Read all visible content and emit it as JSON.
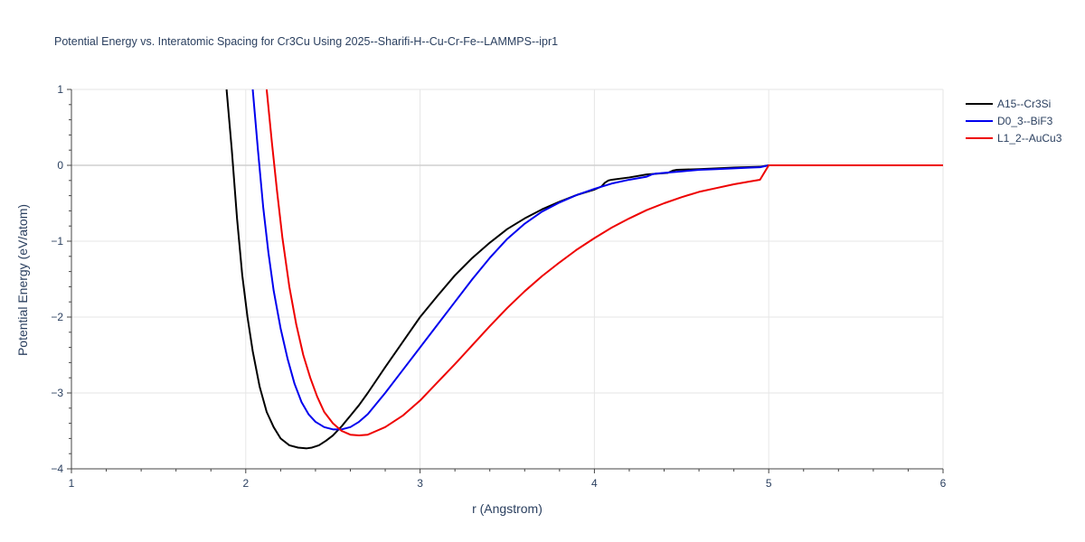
{
  "chart_data": {
    "type": "line",
    "title": "Potential Energy vs. Interatomic Spacing for Cr3Cu Using 2025--Sharifi-H--Cu-Cr-Fe--LAMMPS--ipr1",
    "xlabel": "r (Angstrom)",
    "ylabel": "Potential Energy (eV/atom)",
    "xlim": [
      1,
      6
    ],
    "ylim": [
      -4,
      1
    ],
    "xticks": [
      1,
      2,
      3,
      4,
      5,
      6
    ],
    "yticks": [
      1,
      0,
      -1,
      -2,
      -3,
      -4
    ],
    "xtick_labels": [
      "1",
      "2",
      "3",
      "4",
      "5",
      "6"
    ],
    "ytick_labels": [
      "1",
      "0",
      "−1",
      "−2",
      "−3",
      "−4"
    ],
    "legend_position": "top-right",
    "series": [
      {
        "name": "A15--Cr3Si",
        "color": "#000000",
        "x": [
          1.89,
          1.92,
          1.95,
          1.98,
          2.01,
          2.04,
          2.08,
          2.12,
          2.16,
          2.2,
          2.25,
          2.3,
          2.35,
          2.38,
          2.42,
          2.46,
          2.5,
          2.55,
          2.6,
          2.65,
          2.7,
          2.8,
          2.9,
          3.0,
          3.1,
          3.2,
          3.3,
          3.4,
          3.5,
          3.6,
          3.7,
          3.8,
          3.9,
          4.0,
          4.04,
          4.06,
          4.08,
          4.1,
          4.2,
          4.3,
          4.42,
          4.45,
          4.47,
          4.6,
          4.8,
          4.95,
          5.0,
          5.5,
          6.0
        ],
        "y": [
          1.0,
          0.2,
          -0.7,
          -1.45,
          -2.0,
          -2.45,
          -2.92,
          -3.25,
          -3.45,
          -3.6,
          -3.69,
          -3.72,
          -3.73,
          -3.72,
          -3.69,
          -3.63,
          -3.56,
          -3.44,
          -3.3,
          -3.16,
          -3.0,
          -2.66,
          -2.33,
          -2.0,
          -1.72,
          -1.45,
          -1.22,
          -1.02,
          -0.84,
          -0.7,
          -0.58,
          -0.48,
          -0.39,
          -0.32,
          -0.28,
          -0.23,
          -0.2,
          -0.19,
          -0.16,
          -0.12,
          -0.1,
          -0.07,
          -0.06,
          -0.05,
          -0.03,
          -0.02,
          0.0,
          0.0,
          0.0
        ]
      },
      {
        "name": "D0_3--BiF3",
        "color": "#0000ee",
        "x": [
          2.04,
          2.07,
          2.1,
          2.13,
          2.16,
          2.2,
          2.24,
          2.28,
          2.32,
          2.36,
          2.4,
          2.45,
          2.5,
          2.55,
          2.6,
          2.65,
          2.7,
          2.8,
          2.9,
          3.0,
          3.1,
          3.2,
          3.3,
          3.4,
          3.5,
          3.6,
          3.7,
          3.8,
          3.9,
          4.0,
          4.1,
          4.2,
          4.3,
          4.33,
          4.35,
          4.4,
          4.5,
          4.6,
          4.7,
          4.8,
          4.9,
          4.95,
          5.0,
          5.5,
          6.0
        ],
        "y": [
          1.0,
          0.2,
          -0.55,
          -1.15,
          -1.65,
          -2.15,
          -2.55,
          -2.88,
          -3.12,
          -3.28,
          -3.38,
          -3.45,
          -3.48,
          -3.48,
          -3.45,
          -3.38,
          -3.28,
          -3.0,
          -2.7,
          -2.4,
          -2.1,
          -1.8,
          -1.5,
          -1.22,
          -0.97,
          -0.77,
          -0.61,
          -0.49,
          -0.39,
          -0.31,
          -0.24,
          -0.19,
          -0.15,
          -0.12,
          -0.11,
          -0.1,
          -0.08,
          -0.06,
          -0.05,
          -0.04,
          -0.03,
          -0.025,
          0.0,
          0.0,
          0.0
        ]
      },
      {
        "name": "L1_2--AuCu3",
        "color": "#ee0000",
        "x": [
          2.12,
          2.15,
          2.18,
          2.21,
          2.25,
          2.29,
          2.33,
          2.37,
          2.41,
          2.45,
          2.5,
          2.55,
          2.6,
          2.65,
          2.7,
          2.75,
          2.8,
          2.9,
          3.0,
          3.1,
          3.2,
          3.3,
          3.4,
          3.5,
          3.6,
          3.7,
          3.8,
          3.9,
          4.0,
          4.1,
          4.2,
          4.3,
          4.4,
          4.5,
          4.6,
          4.7,
          4.8,
          4.9,
          4.95,
          5.0,
          5.5,
          6.0
        ],
        "y": [
          1.0,
          0.3,
          -0.35,
          -0.95,
          -1.6,
          -2.1,
          -2.5,
          -2.8,
          -3.05,
          -3.25,
          -3.4,
          -3.5,
          -3.55,
          -3.56,
          -3.55,
          -3.5,
          -3.45,
          -3.3,
          -3.1,
          -2.86,
          -2.62,
          -2.37,
          -2.12,
          -1.88,
          -1.66,
          -1.46,
          -1.28,
          -1.11,
          -0.96,
          -0.82,
          -0.7,
          -0.59,
          -0.5,
          -0.42,
          -0.35,
          -0.3,
          -0.25,
          -0.21,
          -0.19,
          0.0,
          0.0,
          0.0
        ]
      }
    ]
  }
}
